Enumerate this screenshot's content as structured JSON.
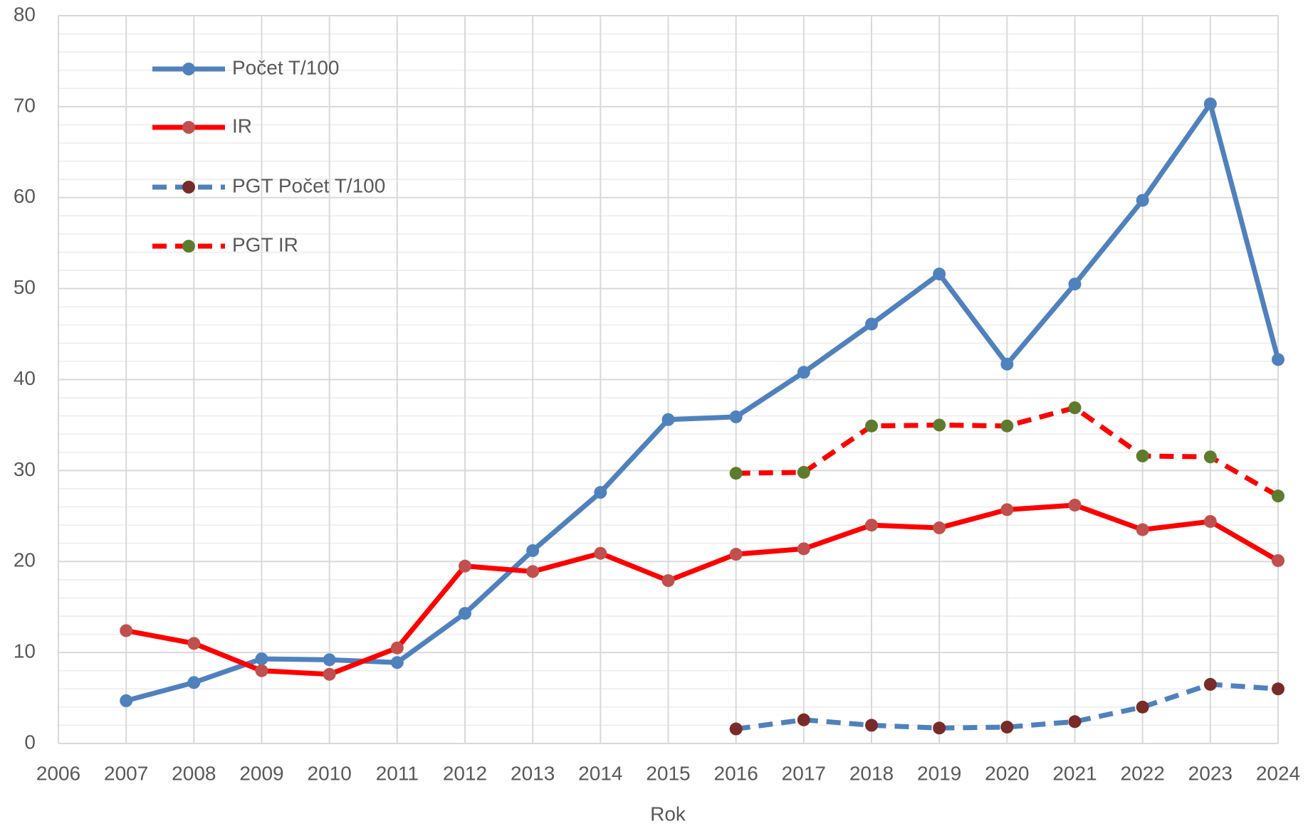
{
  "chart_data": {
    "type": "line",
    "x_label": "Rok",
    "x": [
      2007,
      2008,
      2009,
      2010,
      2011,
      2012,
      2013,
      2014,
      2015,
      2016,
      2017,
      2018,
      2019,
      2020,
      2021,
      2022,
      2023,
      2024
    ],
    "series": [
      {
        "name": "Počet T/100",
        "color": "#4f81bd",
        "marker_color": "#4f81bd",
        "dashed": false,
        "values": [
          4.7,
          6.7,
          9.3,
          9.2,
          8.9,
          14.3,
          21.2,
          27.6,
          35.6,
          35.9,
          40.8,
          46.1,
          51.6,
          41.7,
          50.5,
          59.7,
          70.3,
          42.2
        ]
      },
      {
        "name": "IR",
        "color": "#ff0000",
        "marker_color": "#c0504d",
        "dashed": false,
        "values": [
          12.4,
          11.0,
          8.0,
          7.6,
          10.5,
          19.5,
          18.9,
          20.9,
          17.9,
          20.8,
          21.4,
          24.0,
          23.7,
          25.7,
          26.2,
          23.5,
          24.4,
          20.1
        ]
      },
      {
        "name": "PGT Počet T/100",
        "color": "#4f81bd",
        "marker_color": "#772c2a",
        "dashed": true,
        "values": [
          null,
          null,
          null,
          null,
          null,
          null,
          null,
          null,
          null,
          1.6,
          2.6,
          2.0,
          1.7,
          1.8,
          2.4,
          4.0,
          6.5,
          6.0
        ]
      },
      {
        "name": "PGT IR",
        "color": "#ff0000",
        "marker_color": "#5e7b2d",
        "dashed": true,
        "values": [
          null,
          null,
          null,
          null,
          null,
          null,
          null,
          null,
          null,
          29.7,
          29.8,
          34.9,
          35.0,
          34.9,
          36.9,
          31.6,
          31.5,
          27.2
        ]
      }
    ],
    "xlim": [
      2006,
      2024
    ],
    "xticks": [
      2006,
      2007,
      2008,
      2009,
      2010,
      2011,
      2012,
      2013,
      2014,
      2015,
      2016,
      2017,
      2018,
      2019,
      2020,
      2021,
      2022,
      2023,
      2024
    ],
    "ylim": [
      0,
      80
    ],
    "yticks": [
      0,
      10,
      20,
      30,
      40,
      50,
      60,
      70,
      80
    ],
    "minor_grid_step": 2,
    "grid": true,
    "legend": "upper left"
  }
}
